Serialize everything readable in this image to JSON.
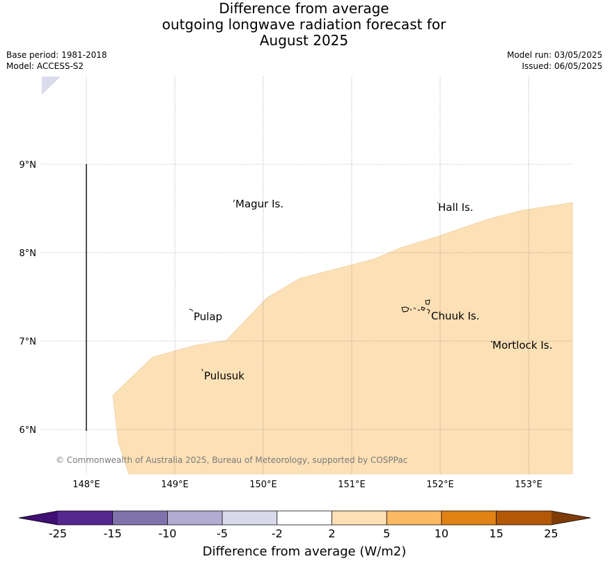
{
  "title": {
    "line1": "Difference from average",
    "line2": "outgoing longwave radiation forecast for",
    "line3": "August 2025"
  },
  "meta": {
    "base_period": "Base period: 1981-2018",
    "model": "Model: ACCESS-S2",
    "model_run": "Model run: 03/05/2025",
    "issued": "Issued: 06/05/2025"
  },
  "map": {
    "lat_labels": [
      "9°N",
      "8°N",
      "7°N",
      "6°N"
    ],
    "lon_labels": [
      "148°E",
      "149°E",
      "150°E",
      "151°E",
      "152°E",
      "153°E"
    ],
    "places": [
      "Magur Is.",
      "Hall Is.",
      "Pulap",
      "Chuuk Is.",
      "Mortlock Is.",
      "Pulusuk"
    ],
    "copyright": "© Commonwealth of Australia 2025, Bureau of Meteorology, supported by COSPPac",
    "region_colors": {
      "positive_2_to_5": "#fce0b6",
      "negative_5_to_2": "#dadbec"
    }
  },
  "colorbar": {
    "label": "Difference from average (W/m2)",
    "ticks": [
      "-25",
      "-15",
      "-10",
      "-5",
      "-2",
      "2",
      "5",
      "10",
      "15",
      "25"
    ],
    "colors": [
      "#3f0f72",
      "#54278f",
      "#8073ac",
      "#b2abd2",
      "#d8daeb",
      "#ffffff",
      "#fee0b6",
      "#fdb863",
      "#e08214",
      "#b35806",
      "#7f3b08"
    ]
  }
}
